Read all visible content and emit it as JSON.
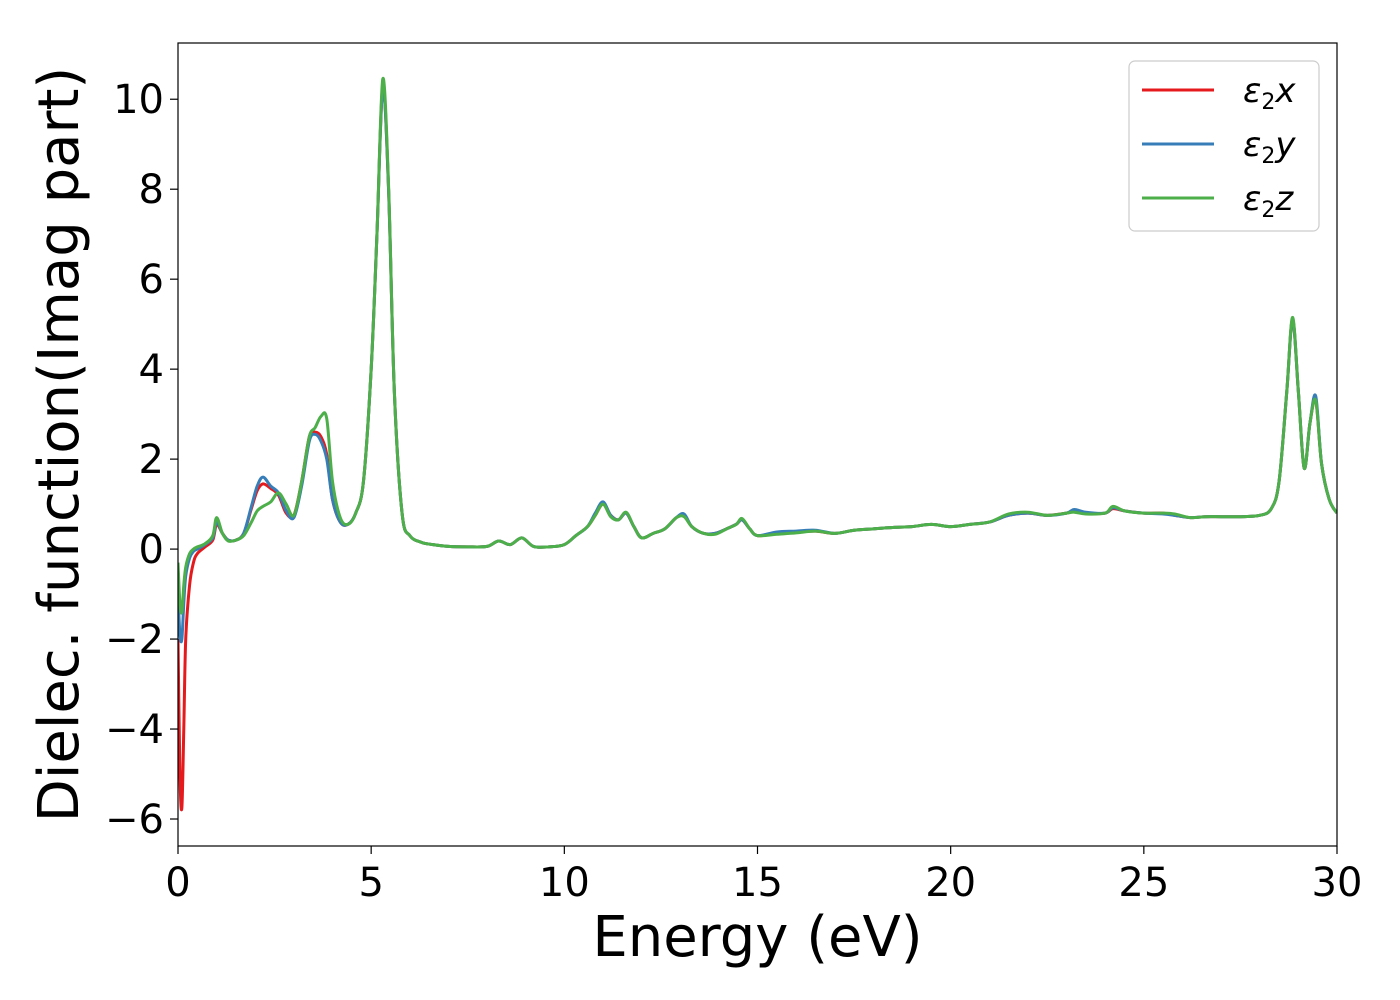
{
  "chart_data": {
    "type": "line",
    "title": "",
    "xlabel": "Energy (eV)",
    "ylabel": "Dielec. function(Imag part)",
    "xlim": [
      0,
      30
    ],
    "ylim": [
      -6.6,
      11.25
    ],
    "xticks": [
      0,
      5,
      10,
      15,
      20,
      25,
      30
    ],
    "yticks": [
      -6,
      -4,
      -2,
      0,
      2,
      4,
      6,
      8,
      10
    ],
    "xtick_labels": [
      "0",
      "5",
      "10",
      "15",
      "20",
      "25",
      "30"
    ],
    "ytick_labels": [
      "−6",
      "−4",
      "−2",
      "0",
      "2",
      "4",
      "6",
      "8",
      "10"
    ],
    "grid": false,
    "legend_position": "top-right",
    "series": [
      {
        "name": "ε₂x",
        "label_base": "ε",
        "label_sub": "2",
        "label_var": "x",
        "color": "#e41a1c",
        "x": [
          0,
          0.05,
          0.1,
          0.15,
          0.2,
          0.3,
          0.4,
          0.5,
          0.7,
          0.9,
          1.0,
          1.15,
          1.3,
          1.5,
          1.7,
          1.9,
          2.05,
          2.2,
          2.4,
          2.6,
          2.8,
          3.0,
          3.2,
          3.4,
          3.55,
          3.7,
          3.85,
          4.0,
          4.2,
          4.4,
          4.6,
          4.8,
          5.0,
          5.15,
          5.3,
          5.45,
          5.6,
          5.8,
          6.0,
          6.3,
          6.6,
          7.0,
          7.5,
          8.0,
          8.3,
          8.6,
          8.9,
          9.2,
          9.6,
          10.0,
          10.3,
          10.6,
          10.8,
          11.0,
          11.2,
          11.4,
          11.6,
          11.8,
          12.0,
          12.3,
          12.6,
          12.9,
          13.1,
          13.3,
          13.6,
          13.9,
          14.2,
          14.45,
          14.6,
          14.8,
          15.0,
          15.5,
          16.0,
          16.5,
          17.0,
          17.5,
          18.0,
          18.5,
          19.0,
          19.5,
          20.0,
          20.5,
          21.0,
          21.5,
          22.0,
          22.5,
          23.0,
          23.2,
          23.5,
          24.0,
          24.2,
          24.5,
          25.0,
          25.5,
          25.8,
          26.2,
          26.6,
          27.0,
          27.5,
          28.0,
          28.3,
          28.5,
          28.7,
          28.85,
          29.0,
          29.15,
          29.3,
          29.45,
          29.6,
          29.8,
          30.0
        ],
        "y": [
          -2.0,
          -5.0,
          -5.75,
          -4.0,
          -2.0,
          -0.8,
          -0.3,
          -0.1,
          0.05,
          0.2,
          0.55,
          0.35,
          0.2,
          0.2,
          0.35,
          0.9,
          1.3,
          1.45,
          1.35,
          1.2,
          0.8,
          0.75,
          1.5,
          2.5,
          2.6,
          2.5,
          2.1,
          1.1,
          0.6,
          0.55,
          0.8,
          1.5,
          4.0,
          7.0,
          10.3,
          8.0,
          3.5,
          0.8,
          0.3,
          0.15,
          0.1,
          0.06,
          0.05,
          0.06,
          0.18,
          0.1,
          0.25,
          0.06,
          0.05,
          0.1,
          0.3,
          0.5,
          0.75,
          1.0,
          0.75,
          0.65,
          0.8,
          0.5,
          0.25,
          0.35,
          0.45,
          0.7,
          0.75,
          0.5,
          0.35,
          0.35,
          0.45,
          0.55,
          0.65,
          0.45,
          0.3,
          0.35,
          0.38,
          0.4,
          0.35,
          0.42,
          0.45,
          0.48,
          0.5,
          0.55,
          0.5,
          0.55,
          0.6,
          0.75,
          0.8,
          0.75,
          0.8,
          0.85,
          0.8,
          0.8,
          0.9,
          0.85,
          0.8,
          0.8,
          0.75,
          0.7,
          0.72,
          0.72,
          0.72,
          0.75,
          0.9,
          1.5,
          3.5,
          5.1,
          3.5,
          1.8,
          2.8,
          3.3,
          1.9,
          1.1,
          0.8
        ]
      },
      {
        "name": "ε₂y",
        "label_base": "ε",
        "label_sub": "2",
        "label_var": "y",
        "color": "#377eb8",
        "x": [
          0,
          0.05,
          0.1,
          0.15,
          0.2,
          0.3,
          0.4,
          0.5,
          0.7,
          0.9,
          1.0,
          1.15,
          1.3,
          1.5,
          1.7,
          1.9,
          2.05,
          2.2,
          2.4,
          2.6,
          2.8,
          3.0,
          3.2,
          3.4,
          3.55,
          3.7,
          3.85,
          4.0,
          4.2,
          4.4,
          4.6,
          4.8,
          5.0,
          5.15,
          5.3,
          5.45,
          5.6,
          5.8,
          6.0,
          6.3,
          6.6,
          7.0,
          7.5,
          8.0,
          8.3,
          8.6,
          8.9,
          9.2,
          9.6,
          10.0,
          10.3,
          10.6,
          10.8,
          11.0,
          11.2,
          11.4,
          11.6,
          11.8,
          12.0,
          12.3,
          12.6,
          12.9,
          13.1,
          13.3,
          13.6,
          13.9,
          14.2,
          14.45,
          14.6,
          14.8,
          15.0,
          15.5,
          16.0,
          16.5,
          17.0,
          17.5,
          18.0,
          18.5,
          19.0,
          19.5,
          20.0,
          20.5,
          21.0,
          21.5,
          22.0,
          22.5,
          23.0,
          23.2,
          23.5,
          24.0,
          24.2,
          24.5,
          25.0,
          25.5,
          25.8,
          26.2,
          26.6,
          27.0,
          27.5,
          28.0,
          28.3,
          28.5,
          28.7,
          28.85,
          29.0,
          29.15,
          29.3,
          29.45,
          29.6,
          29.8,
          30.0
        ],
        "y": [
          -1.0,
          -1.9,
          -2.0,
          -1.2,
          -0.6,
          -0.2,
          -0.05,
          0.0,
          0.1,
          0.25,
          0.6,
          0.35,
          0.2,
          0.2,
          0.35,
          0.95,
          1.4,
          1.6,
          1.4,
          1.25,
          0.85,
          0.7,
          1.4,
          2.4,
          2.55,
          2.4,
          2.0,
          1.1,
          0.6,
          0.55,
          0.8,
          1.5,
          4.0,
          7.0,
          10.25,
          8.0,
          3.5,
          0.8,
          0.3,
          0.15,
          0.1,
          0.06,
          0.05,
          0.06,
          0.18,
          0.1,
          0.25,
          0.06,
          0.05,
          0.1,
          0.3,
          0.5,
          0.8,
          1.05,
          0.75,
          0.65,
          0.8,
          0.5,
          0.25,
          0.35,
          0.45,
          0.7,
          0.78,
          0.5,
          0.35,
          0.35,
          0.45,
          0.55,
          0.65,
          0.45,
          0.3,
          0.38,
          0.4,
          0.42,
          0.35,
          0.42,
          0.45,
          0.48,
          0.5,
          0.55,
          0.5,
          0.55,
          0.6,
          0.75,
          0.8,
          0.75,
          0.8,
          0.88,
          0.82,
          0.8,
          0.92,
          0.85,
          0.8,
          0.78,
          0.75,
          0.7,
          0.72,
          0.72,
          0.72,
          0.75,
          0.9,
          1.5,
          3.5,
          5.1,
          3.5,
          1.8,
          2.8,
          3.4,
          1.9,
          1.1,
          0.8
        ]
      },
      {
        "name": "ε₂z",
        "label_base": "ε",
        "label_sub": "2",
        "label_var": "z",
        "color": "#4daf4a",
        "x": [
          0,
          0.05,
          0.1,
          0.15,
          0.2,
          0.3,
          0.4,
          0.5,
          0.7,
          0.9,
          1.0,
          1.15,
          1.3,
          1.5,
          1.7,
          1.9,
          2.05,
          2.2,
          2.4,
          2.6,
          2.8,
          3.0,
          3.2,
          3.4,
          3.55,
          3.7,
          3.85,
          4.0,
          4.2,
          4.4,
          4.6,
          4.8,
          5.0,
          5.15,
          5.3,
          5.45,
          5.6,
          5.8,
          6.0,
          6.3,
          6.6,
          7.0,
          7.5,
          8.0,
          8.3,
          8.6,
          8.9,
          9.2,
          9.6,
          10.0,
          10.3,
          10.6,
          10.8,
          11.0,
          11.2,
          11.4,
          11.6,
          11.8,
          12.0,
          12.3,
          12.6,
          12.9,
          13.1,
          13.3,
          13.6,
          13.9,
          14.2,
          14.45,
          14.6,
          14.8,
          15.0,
          15.5,
          16.0,
          16.5,
          17.0,
          17.5,
          18.0,
          18.5,
          19.0,
          19.5,
          20.0,
          20.5,
          21.0,
          21.5,
          22.0,
          22.5,
          23.0,
          23.2,
          23.5,
          24.0,
          24.2,
          24.5,
          25.0,
          25.5,
          25.8,
          26.2,
          26.6,
          27.0,
          27.5,
          28.0,
          28.3,
          28.5,
          28.7,
          28.85,
          29.0,
          29.15,
          29.3,
          29.45,
          29.6,
          29.8,
          30.0
        ],
        "y": [
          -0.3,
          -1.2,
          -1.4,
          -0.8,
          -0.4,
          -0.1,
          0.0,
          0.05,
          0.12,
          0.3,
          0.7,
          0.35,
          0.18,
          0.2,
          0.3,
          0.6,
          0.85,
          0.95,
          1.05,
          1.25,
          1.0,
          0.75,
          1.5,
          2.5,
          2.7,
          2.95,
          2.9,
          1.5,
          0.7,
          0.55,
          0.8,
          1.5,
          4.0,
          7.0,
          10.45,
          8.1,
          3.5,
          0.8,
          0.3,
          0.15,
          0.1,
          0.06,
          0.05,
          0.06,
          0.18,
          0.1,
          0.25,
          0.06,
          0.05,
          0.1,
          0.3,
          0.5,
          0.75,
          1.0,
          0.72,
          0.65,
          0.82,
          0.5,
          0.25,
          0.35,
          0.45,
          0.7,
          0.72,
          0.5,
          0.35,
          0.33,
          0.45,
          0.55,
          0.68,
          0.45,
          0.3,
          0.33,
          0.36,
          0.4,
          0.35,
          0.42,
          0.45,
          0.48,
          0.5,
          0.55,
          0.5,
          0.55,
          0.6,
          0.78,
          0.82,
          0.75,
          0.8,
          0.82,
          0.78,
          0.8,
          0.95,
          0.85,
          0.8,
          0.8,
          0.78,
          0.7,
          0.72,
          0.72,
          0.72,
          0.75,
          0.9,
          1.5,
          3.5,
          5.15,
          3.5,
          1.8,
          2.8,
          3.3,
          1.9,
          1.1,
          0.8
        ]
      }
    ]
  }
}
